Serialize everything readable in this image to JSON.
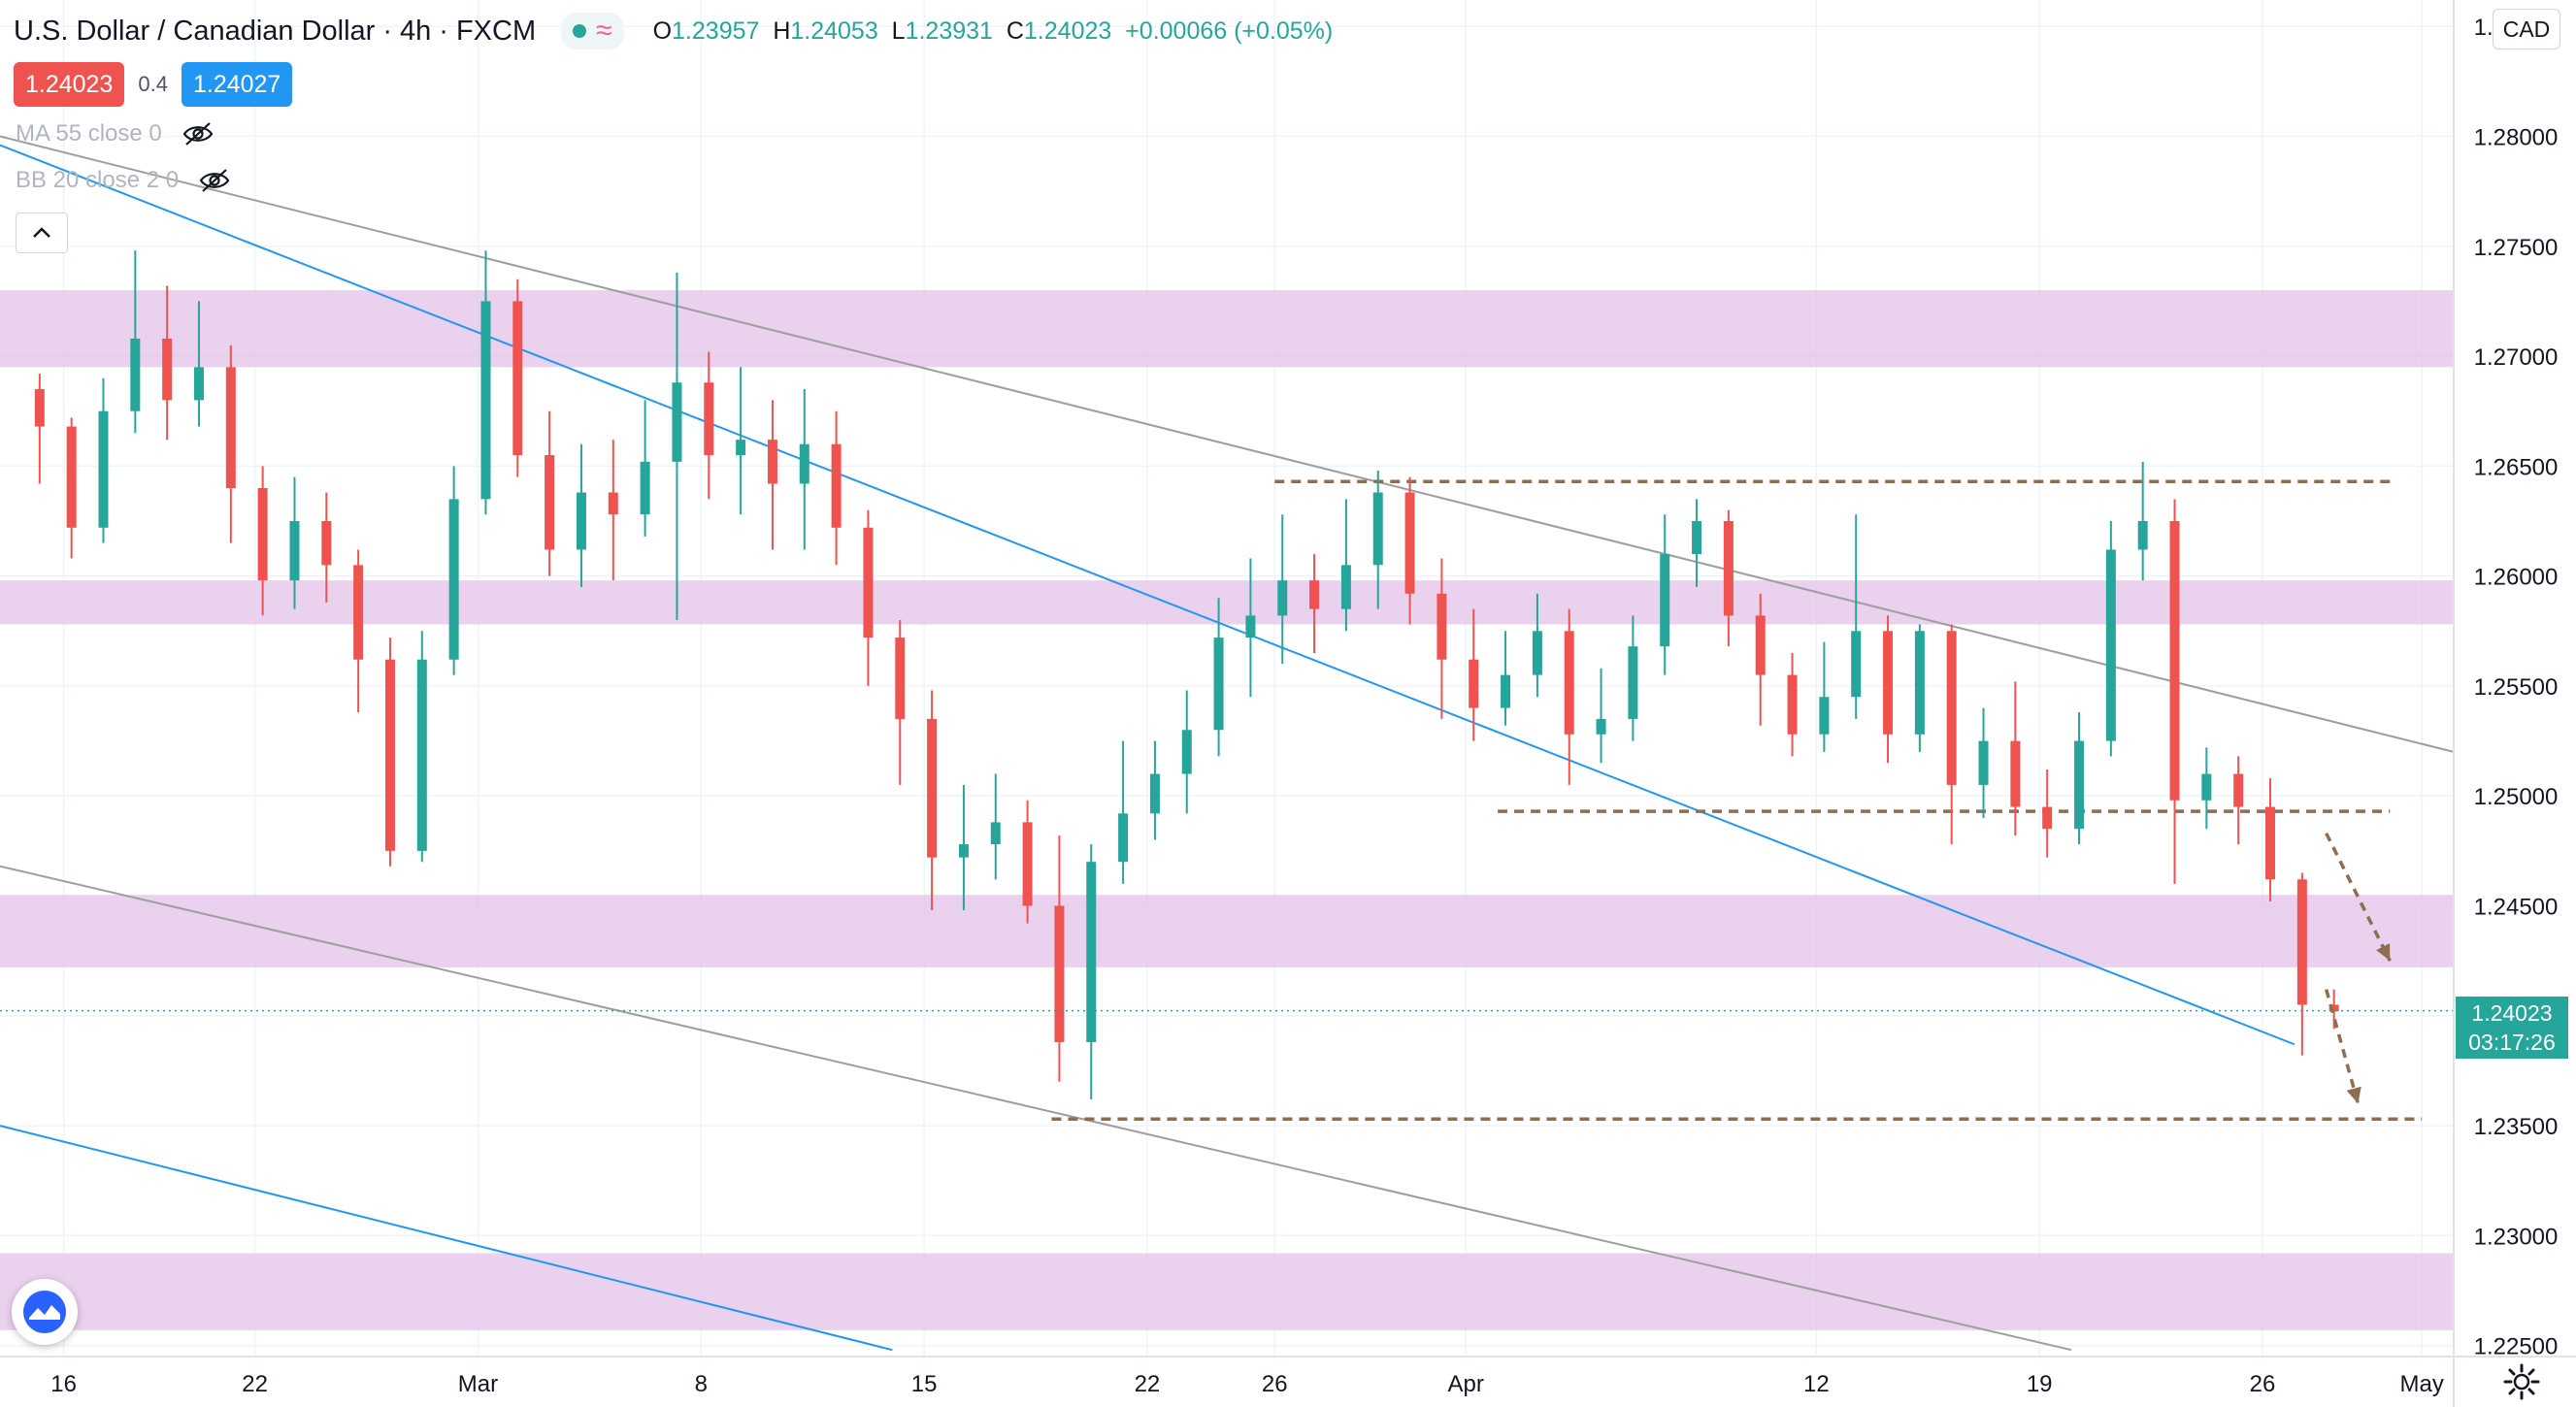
{
  "header": {
    "symbol": "U.S. Dollar / Canadian Dollar",
    "interval": "4h",
    "exchange": "FXCM",
    "ohlc": {
      "o": "1.23957",
      "h": "1.24053",
      "l": "1.23931",
      "c": "1.24023",
      "change": "+0.00066 (+0.05%)"
    }
  },
  "trade": {
    "sell_price": "1.24023",
    "spread": "0.4",
    "buy_price": "1.24027"
  },
  "indicators": [
    {
      "label": "MA 55 close 0"
    },
    {
      "label": "BB 20 close 2 0"
    }
  ],
  "currency": "CAD",
  "last_price": {
    "value": "1.24023",
    "countdown": "03:17:26"
  },
  "colors": {
    "up": "#26a69a",
    "down": "#ef5350",
    "zone": "#e1bee7",
    "trend_blue": "#2196f3",
    "trend_gray": "#9e9e9e",
    "level": "#8d6e50",
    "sell_btn": "#ef5350",
    "buy_btn": "#2196f3"
  },
  "icons": [
    "eye-off-icon",
    "chevron-up-icon",
    "tradingview-logo-icon",
    "gear-icon"
  ],
  "chart_data": {
    "type": "candlestick",
    "y_axis": {
      "ticks": [
        1.285,
        1.28,
        1.275,
        1.27,
        1.265,
        1.26,
        1.255,
        1.25,
        1.245,
        1.24,
        1.235,
        1.23,
        1.225
      ],
      "tick_labels": [
        "1.28500",
        "1.28000",
        "1.27500",
        "1.27000",
        "1.26500",
        "1.26000",
        "1.25500",
        "1.25000",
        "1.24500",
        "",
        "1.23500",
        "1.23000",
        "1.22500"
      ],
      "range": [
        1.2245,
        1.2862
      ]
    },
    "x_axis": {
      "range": [
        "2021-02-14",
        "2021-05-02"
      ],
      "ticks": [
        {
          "label": "16",
          "date": "2021-02-16"
        },
        {
          "label": "22",
          "date": "2021-02-22"
        },
        {
          "label": "Mar",
          "date": "2021-03-01"
        },
        {
          "label": "8",
          "date": "2021-03-08"
        },
        {
          "label": "15",
          "date": "2021-03-15"
        },
        {
          "label": "22",
          "date": "2021-03-22"
        },
        {
          "label": "26",
          "date": "2021-03-26"
        },
        {
          "label": "Apr",
          "date": "2021-04-01"
        },
        {
          "label": "12",
          "date": "2021-04-12"
        },
        {
          "label": "19",
          "date": "2021-04-19"
        },
        {
          "label": "26",
          "date": "2021-04-26"
        },
        {
          "label": "May",
          "date": "2021-05-01"
        }
      ]
    },
    "candles": [
      [
        "2021-02-15",
        1.2685,
        1.2668,
        1.2692,
        1.2642
      ],
      [
        "2021-02-16",
        1.2668,
        1.2622,
        1.2672,
        1.2608
      ],
      [
        "2021-02-17",
        1.2622,
        1.2675,
        1.269,
        1.2615
      ],
      [
        "2021-02-18",
        1.2675,
        1.2708,
        1.2748,
        1.2665
      ],
      [
        "2021-02-19",
        1.2708,
        1.268,
        1.2732,
        1.2662
      ],
      [
        "2021-02-20",
        1.268,
        1.2695,
        1.2725,
        1.2668
      ],
      [
        "2021-02-21",
        1.2695,
        1.264,
        1.2705,
        1.2615
      ],
      [
        "2021-02-22",
        1.264,
        1.2598,
        1.265,
        1.2582
      ],
      [
        "2021-02-23",
        1.2598,
        1.2625,
        1.2645,
        1.2585
      ],
      [
        "2021-02-24",
        1.2625,
        1.2605,
        1.2638,
        1.2588
      ],
      [
        "2021-02-25",
        1.2605,
        1.2562,
        1.2612,
        1.2538
      ],
      [
        "2021-02-26",
        1.2562,
        1.2475,
        1.2572,
        1.2468
      ],
      [
        "2021-02-27",
        1.2475,
        1.2562,
        1.2575,
        1.247
      ],
      [
        "2021-02-28",
        1.2562,
        1.2635,
        1.265,
        1.2555
      ],
      [
        "2021-03-01",
        1.2635,
        1.2725,
        1.2748,
        1.2628
      ],
      [
        "2021-03-02",
        1.2725,
        1.2655,
        1.2735,
        1.2645
      ],
      [
        "2021-03-03",
        1.2655,
        1.2612,
        1.2675,
        1.26
      ],
      [
        "2021-03-04",
        1.2612,
        1.2638,
        1.266,
        1.2595
      ],
      [
        "2021-03-05",
        1.2638,
        1.2628,
        1.2662,
        1.2598
      ],
      [
        "2021-03-06",
        1.2628,
        1.2652,
        1.268,
        1.2618
      ],
      [
        "2021-03-07",
        1.2652,
        1.2688,
        1.2738,
        1.258
      ],
      [
        "2021-03-08",
        1.2688,
        1.2655,
        1.2702,
        1.2635
      ],
      [
        "2021-03-09",
        1.2655,
        1.2662,
        1.2695,
        1.2628
      ],
      [
        "2021-03-10",
        1.2662,
        1.2642,
        1.268,
        1.2612
      ],
      [
        "2021-03-11",
        1.2642,
        1.266,
        1.2685,
        1.2612
      ],
      [
        "2021-03-12",
        1.266,
        1.2622,
        1.2675,
        1.2605
      ],
      [
        "2021-03-13",
        1.2622,
        1.2572,
        1.263,
        1.255
      ],
      [
        "2021-03-14",
        1.2572,
        1.2535,
        1.258,
        1.2505
      ],
      [
        "2021-03-15",
        1.2535,
        1.2472,
        1.2548,
        1.2448
      ],
      [
        "2021-03-16",
        1.2472,
        1.2478,
        1.2505,
        1.2448
      ],
      [
        "2021-03-17",
        1.2478,
        1.2488,
        1.251,
        1.2462
      ],
      [
        "2021-03-18",
        1.2488,
        1.245,
        1.2498,
        1.2442
      ],
      [
        "2021-03-19",
        1.245,
        1.2388,
        1.2482,
        1.237
      ],
      [
        "2021-03-20",
        1.2388,
        1.247,
        1.2478,
        1.2362
      ],
      [
        "2021-03-21",
        1.247,
        1.2492,
        1.2525,
        1.246
      ],
      [
        "2021-03-22",
        1.2492,
        1.251,
        1.2525,
        1.248
      ],
      [
        "2021-03-23",
        1.251,
        1.253,
        1.2548,
        1.2492
      ],
      [
        "2021-03-24",
        1.253,
        1.2572,
        1.259,
        1.2518
      ],
      [
        "2021-03-25",
        1.2572,
        1.2582,
        1.2608,
        1.2545
      ],
      [
        "2021-03-26",
        1.2582,
        1.2598,
        1.2628,
        1.256
      ],
      [
        "2021-03-27",
        1.2598,
        1.2585,
        1.261,
        1.2565
      ],
      [
        "2021-03-28",
        1.2585,
        1.2605,
        1.2635,
        1.2575
      ],
      [
        "2021-03-29",
        1.2605,
        1.2638,
        1.2648,
        1.2585
      ],
      [
        "2021-03-30",
        1.2638,
        1.2592,
        1.2645,
        1.2578
      ],
      [
        "2021-03-31",
        1.2592,
        1.2562,
        1.2608,
        1.2535
      ],
      [
        "2021-04-01",
        1.2562,
        1.254,
        1.2585,
        1.2525
      ],
      [
        "2021-04-02",
        1.254,
        1.2555,
        1.2575,
        1.2532
      ],
      [
        "2021-04-03",
        1.2555,
        1.2575,
        1.2592,
        1.2545
      ],
      [
        "2021-04-04",
        1.2575,
        1.2528,
        1.2585,
        1.2505
      ],
      [
        "2021-04-05",
        1.2528,
        1.2535,
        1.2558,
        1.2515
      ],
      [
        "2021-04-06",
        1.2535,
        1.2568,
        1.2582,
        1.2525
      ],
      [
        "2021-04-07",
        1.2568,
        1.261,
        1.2628,
        1.2555
      ],
      [
        "2021-04-08",
        1.261,
        1.2625,
        1.2635,
        1.2595
      ],
      [
        "2021-04-09",
        1.2625,
        1.2582,
        1.263,
        1.2568
      ],
      [
        "2021-04-10",
        1.2582,
        1.2555,
        1.2592,
        1.2532
      ],
      [
        "2021-04-11",
        1.2555,
        1.2528,
        1.2565,
        1.2518
      ],
      [
        "2021-04-12",
        1.2528,
        1.2545,
        1.257,
        1.252
      ],
      [
        "2021-04-13",
        1.2545,
        1.2575,
        1.2628,
        1.2535
      ],
      [
        "2021-04-14",
        1.2575,
        1.2528,
        1.2582,
        1.2515
      ],
      [
        "2021-04-15",
        1.2528,
        1.2575,
        1.2578,
        1.252
      ],
      [
        "2021-04-16",
        1.2575,
        1.2505,
        1.2578,
        1.2478
      ],
      [
        "2021-04-17",
        1.2505,
        1.2525,
        1.254,
        1.249
      ],
      [
        "2021-04-18",
        1.2525,
        1.2495,
        1.2552,
        1.2482
      ],
      [
        "2021-04-19",
        1.2495,
        1.2485,
        1.2512,
        1.2472
      ],
      [
        "2021-04-20",
        1.2485,
        1.2525,
        1.2538,
        1.2478
      ],
      [
        "2021-04-21",
        1.2525,
        1.2612,
        1.2625,
        1.2518
      ],
      [
        "2021-04-22",
        1.2612,
        1.2625,
        1.2652,
        1.2598
      ],
      [
        "2021-04-23",
        1.2625,
        1.2498,
        1.2635,
        1.246
      ],
      [
        "2021-04-24",
        1.2498,
        1.251,
        1.2522,
        1.2485
      ],
      [
        "2021-04-25",
        1.251,
        1.2495,
        1.2518,
        1.2478
      ],
      [
        "2021-04-26",
        1.2495,
        1.2462,
        1.2508,
        1.2452
      ],
      [
        "2021-04-27",
        1.2462,
        1.2405,
        1.2465,
        1.2382
      ],
      [
        "2021-04-28",
        1.2405,
        1.2402,
        1.2412,
        1.2394
      ]
    ],
    "zones": [
      [
        1.2695,
        1.273
      ],
      [
        1.2578,
        1.2598
      ],
      [
        1.2422,
        1.2455
      ],
      [
        1.2257,
        1.2292
      ]
    ],
    "levels": [
      {
        "price": 1.2643,
        "from": "2021-03-26",
        "to": "2021-04-30"
      },
      {
        "price": 1.2493,
        "from": "2021-04-02",
        "to": "2021-04-30"
      },
      {
        "price": 1.2353,
        "from": "2021-03-19",
        "to": "2021-05-01"
      }
    ],
    "trendlines": [
      {
        "color": "blue",
        "points": [
          [
            "2021-02-14",
            1.2796
          ],
          [
            "2021-04-27",
            1.2387
          ]
        ]
      },
      {
        "color": "blue",
        "points": [
          [
            "2021-02-14",
            1.235
          ],
          [
            "2021-03-14",
            1.2248
          ]
        ]
      },
      {
        "color": "gray",
        "points": [
          [
            "2021-02-14",
            1.28
          ],
          [
            "2021-05-02",
            1.252
          ]
        ]
      },
      {
        "color": "gray",
        "points": [
          [
            "2021-02-14",
            1.2468
          ],
          [
            "2021-04-20",
            1.2248
          ]
        ]
      }
    ],
    "arrows": [
      {
        "from": [
          "2021-04-28",
          1.2483
        ],
        "to": [
          "2021-04-30",
          1.2425
        ]
      },
      {
        "from": [
          "2021-04-28",
          1.2412
        ],
        "to": [
          "2021-04-29",
          1.236
        ]
      }
    ],
    "last_price_line": 1.24023
  }
}
